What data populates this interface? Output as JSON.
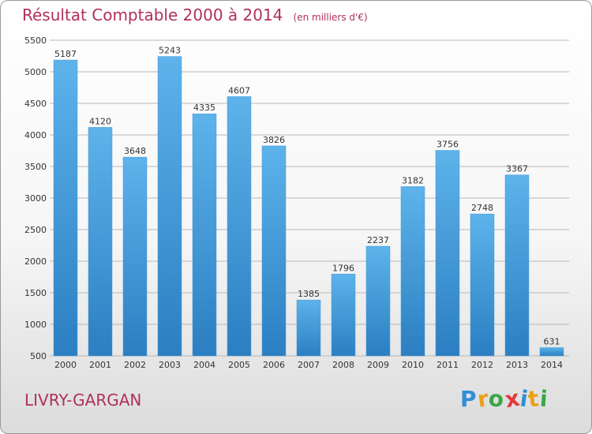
{
  "title": "Résultat Comptable 2000 à 2014",
  "subtitle": "(en milliers d'€)",
  "location": "LIVRY-GARGAN",
  "brand": "Proxiti",
  "colors": {
    "title": "#b0305a",
    "bar_top": "#5db3ea",
    "bar_bottom": "#2b7fc2",
    "grid": "#b8b8b8",
    "axis_text": "#333333"
  },
  "chart_data": {
    "type": "bar",
    "categories": [
      "2000",
      "2001",
      "2002",
      "2003",
      "2004",
      "2005",
      "2006",
      "2007",
      "2008",
      "2009",
      "2010",
      "2011",
      "2012",
      "2013",
      "2014"
    ],
    "values": [
      5187,
      4120,
      3648,
      5243,
      4335,
      4607,
      3826,
      1385,
      1796,
      2237,
      3182,
      3756,
      2748,
      3367,
      631
    ],
    "ylim": [
      500,
      5500
    ],
    "yticks": [
      500,
      1000,
      1500,
      2000,
      2500,
      3000,
      3500,
      4000,
      4500,
      5000,
      5500
    ],
    "grid": true,
    "data_labels": true
  }
}
